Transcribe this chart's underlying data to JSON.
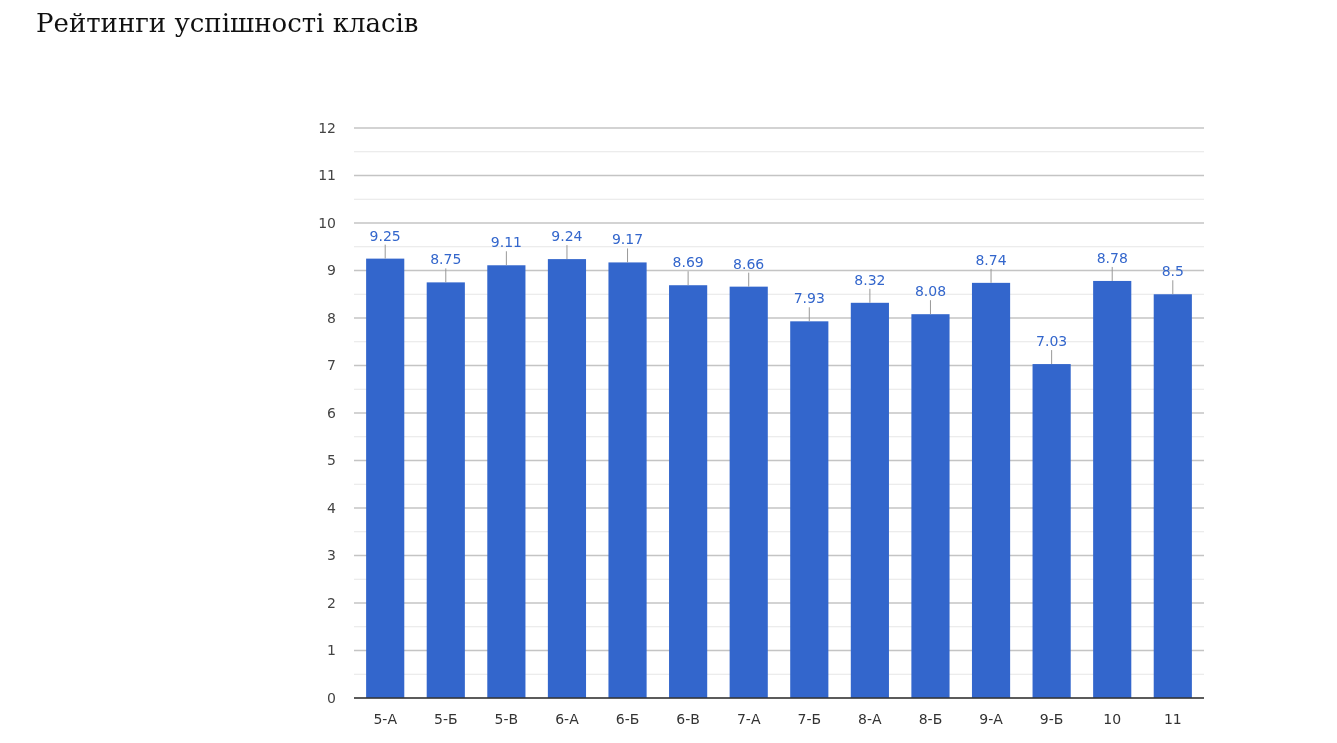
{
  "chart_data": {
    "type": "bar",
    "title": "Рейтинги успішності класів",
    "categories": [
      "5-А",
      "5-Б",
      "5-В",
      "6-А",
      "6-Б",
      "6-В",
      "7-А",
      "7-Б",
      "8-А",
      "8-Б",
      "9-А",
      "9-Б",
      "10",
      "11"
    ],
    "values": [
      9.25,
      8.75,
      9.11,
      9.24,
      9.17,
      8.69,
      8.66,
      7.93,
      8.32,
      8.08,
      8.74,
      7.03,
      8.78,
      8.5
    ],
    "color": "#3366cc",
    "ylim": [
      0,
      12
    ],
    "yticks": [
      0,
      1,
      2,
      3,
      4,
      5,
      6,
      7,
      8,
      9,
      10,
      11,
      12
    ],
    "grid": true,
    "data_labels": true
  }
}
